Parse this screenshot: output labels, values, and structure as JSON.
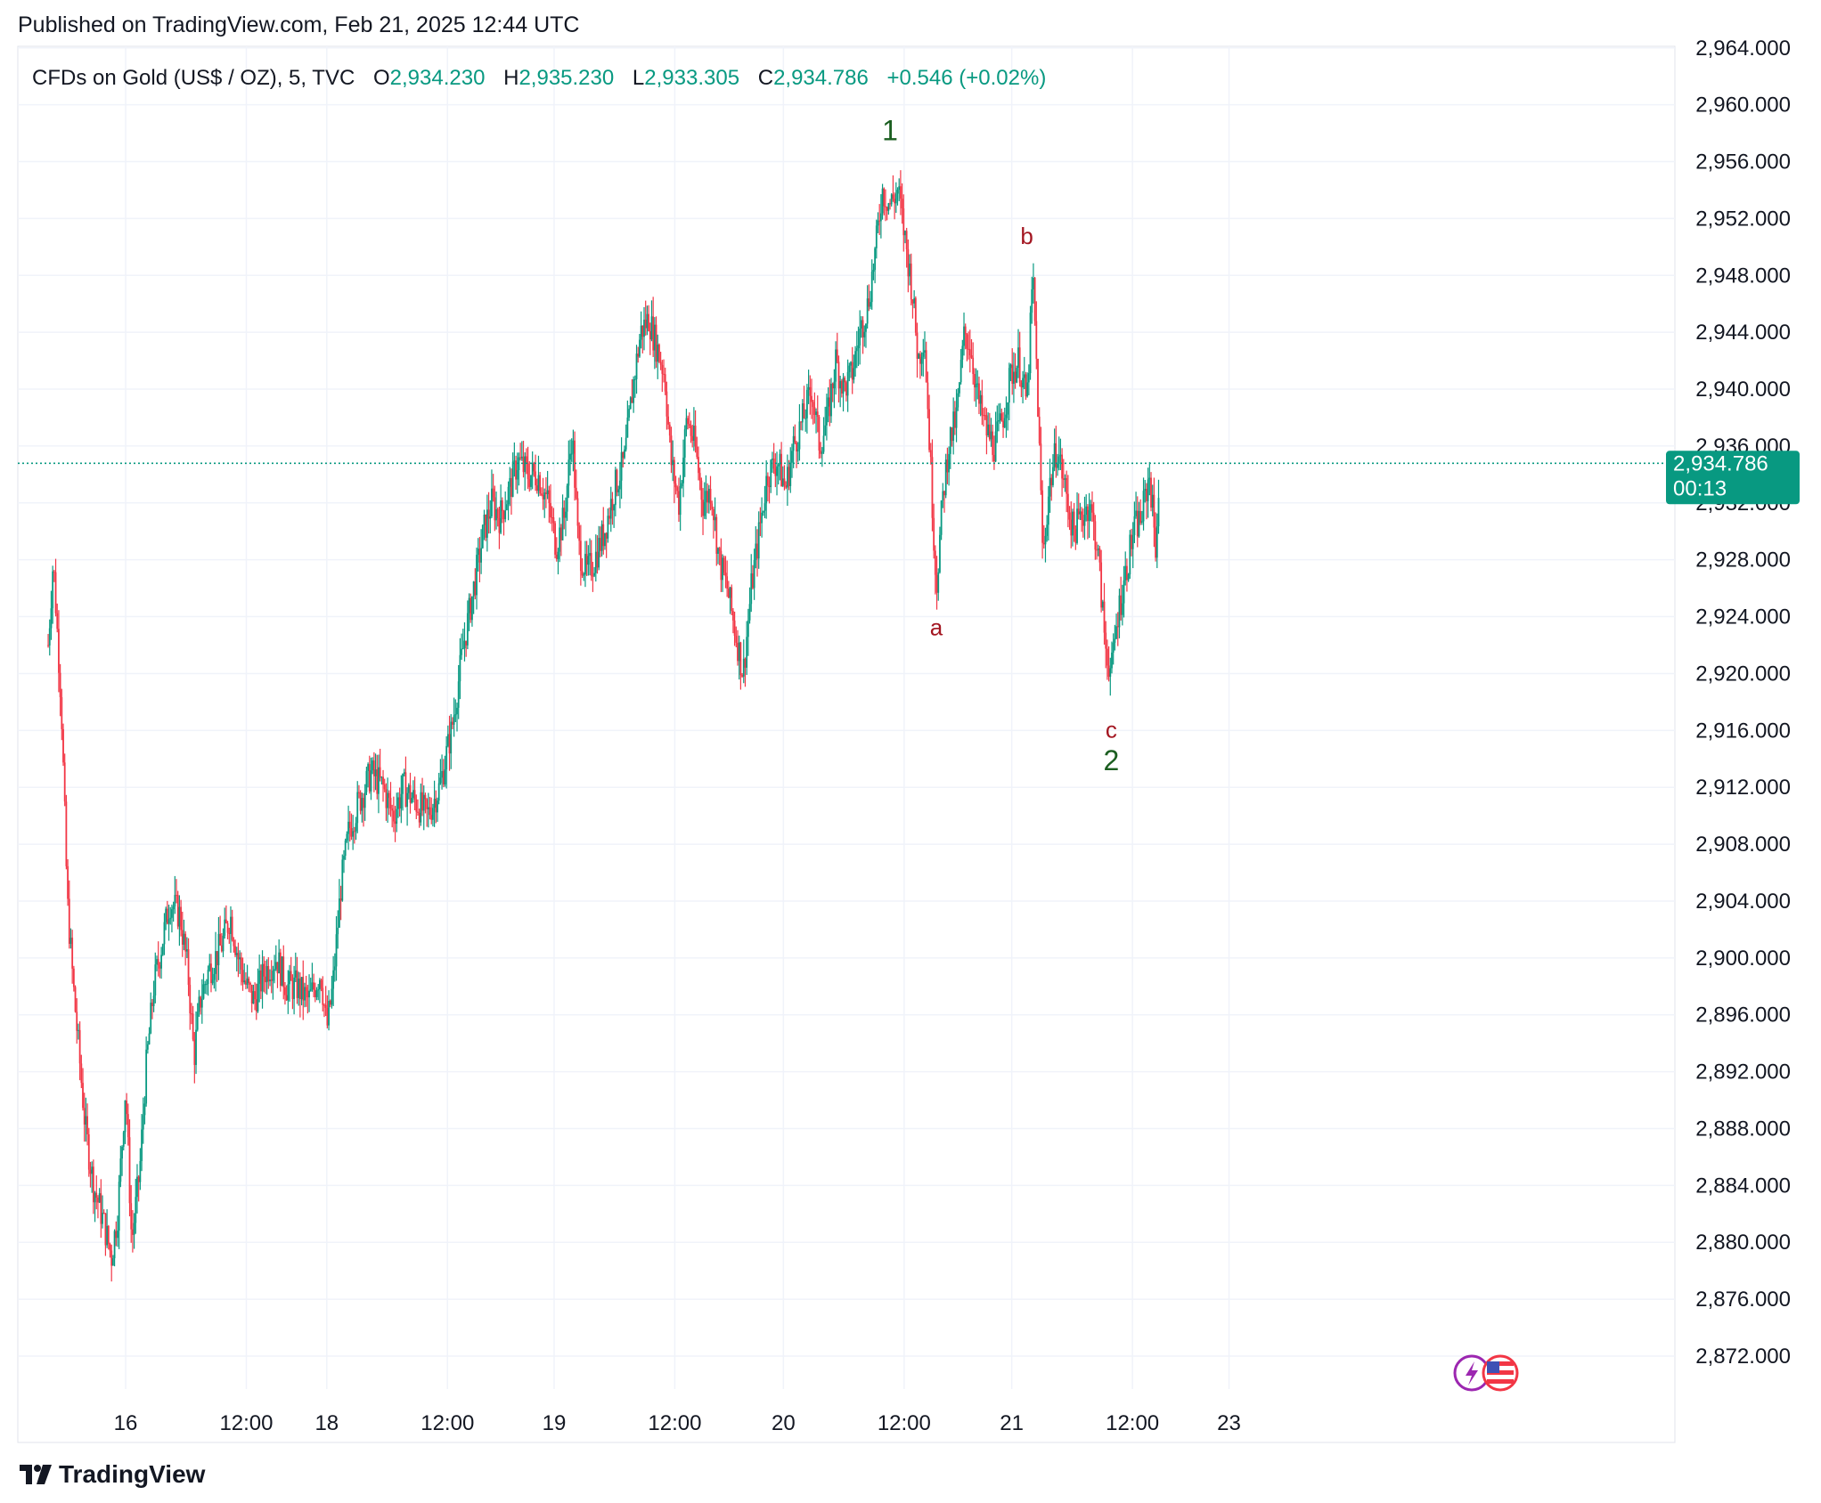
{
  "header": {
    "published": "Published on TradingView.com, Feb 21, 2025 12:44 UTC"
  },
  "legend": {
    "symbol": "CFDs on Gold (US$ / OZ), 5, TVC",
    "open_prefix": "O",
    "open": "2,934.230",
    "high_prefix": "H",
    "high": "2,935.230",
    "low_prefix": "L",
    "low": "2,933.305",
    "close_prefix": "C",
    "close": "2,934.786",
    "change": "+0.546 (+0.02%)"
  },
  "price_badge": {
    "price": "2,934.786",
    "countdown": "00:13"
  },
  "footer": {
    "brand": "TradingView"
  },
  "colors": {
    "up": "#089981",
    "down": "#f23645",
    "grid": "#f0f3fa",
    "badge": "#089981",
    "wave_green": "#1b5e20",
    "wave_red": "#a31621"
  },
  "chart_data": {
    "type": "candlestick",
    "symbol": "TVC:GOLD",
    "interval": "5",
    "ylim": [
      2870,
      2966
    ],
    "y_ticks": [
      "2,964.000",
      "2,960.000",
      "2,956.000",
      "2,952.000",
      "2,948.000",
      "2,944.000",
      "2,940.000",
      "2,936.000",
      "2,932.000",
      "2,928.000",
      "2,924.000",
      "2,920.000",
      "2,916.000",
      "2,912.000",
      "2,908.000",
      "2,904.000",
      "2,900.000",
      "2,896.000",
      "2,892.000",
      "2,888.000",
      "2,884.000",
      "2,880.000",
      "2,876.000",
      "2,872.000"
    ],
    "y_tick_values": [
      2964,
      2960,
      2956,
      2952,
      2948,
      2944,
      2940,
      2936,
      2932,
      2928,
      2924,
      2920,
      2916,
      2912,
      2908,
      2904,
      2900,
      2896,
      2892,
      2888,
      2884,
      2880,
      2876,
      2872
    ],
    "x_ticks": [
      {
        "label": "16",
        "t": 0.0
      },
      {
        "label": "12:00",
        "t": 12.0
      },
      {
        "label": "18",
        "t": 20.0
      },
      {
        "label": "12:00",
        "t": 32.0
      },
      {
        "label": "19",
        "t": 42.6
      },
      {
        "label": "12:00",
        "t": 54.6
      },
      {
        "label": "20",
        "t": 65.4
      },
      {
        "label": "12:00",
        "t": 77.4
      },
      {
        "label": "21",
        "t": 88.1
      },
      {
        "label": "12:00",
        "t": 100.1
      },
      {
        "label": "23",
        "t": 109.7
      }
    ],
    "x_unit": "hours since Feb 16 00:00 on the trading-time axis",
    "price_path": [
      [
        -7.7,
        2922
      ],
      [
        -7.2,
        2928
      ],
      [
        -6.4,
        2918
      ],
      [
        -5.8,
        2904
      ],
      [
        -5.2,
        2898
      ],
      [
        -4.6,
        2893
      ],
      [
        -4.0,
        2888
      ],
      [
        -3.2,
        2884
      ],
      [
        -2.4,
        2882
      ],
      [
        -1.4,
        2879
      ],
      [
        -0.8,
        2882
      ],
      [
        0.0,
        2891
      ],
      [
        0.6,
        2880
      ],
      [
        1.4,
        2885
      ],
      [
        2.0,
        2892
      ],
      [
        2.8,
        2898
      ],
      [
        3.6,
        2901
      ],
      [
        4.4,
        2904
      ],
      [
        5.4,
        2903
      ],
      [
        6.2,
        2899
      ],
      [
        6.8,
        2893
      ],
      [
        7.4,
        2897
      ],
      [
        8.2,
        2899
      ],
      [
        9.6,
        2901
      ],
      [
        10.4,
        2903
      ],
      [
        11.2,
        2900
      ],
      [
        12.0,
        2898
      ],
      [
        12.8,
        2897
      ],
      [
        13.8,
        2899
      ],
      [
        15.0,
        2900
      ],
      [
        16.0,
        2898
      ],
      [
        17.0,
        2898
      ],
      [
        18.2,
        2897
      ],
      [
        19.4,
        2899
      ],
      [
        20.0,
        2895
      ],
      [
        20.6,
        2898
      ],
      [
        21.4,
        2905
      ],
      [
        22.2,
        2909
      ],
      [
        23.2,
        2911
      ],
      [
        24.4,
        2913
      ],
      [
        25.6,
        2912
      ],
      [
        26.6,
        2910
      ],
      [
        27.6,
        2912
      ],
      [
        28.8,
        2911
      ],
      [
        30.0,
        2910
      ],
      [
        31.2,
        2912
      ],
      [
        32.4,
        2916
      ],
      [
        33.6,
        2922
      ],
      [
        34.6,
        2926
      ],
      [
        35.6,
        2930
      ],
      [
        36.4,
        2932
      ],
      [
        37.2,
        2931
      ],
      [
        38.2,
        2933
      ],
      [
        39.0,
        2935
      ],
      [
        40.0,
        2934
      ],
      [
        41.0,
        2934
      ],
      [
        42.0,
        2932
      ],
      [
        42.8,
        2929
      ],
      [
        43.6,
        2931
      ],
      [
        44.4,
        2937
      ],
      [
        45.0,
        2929
      ],
      [
        45.8,
        2927
      ],
      [
        46.6,
        2928
      ],
      [
        47.6,
        2930
      ],
      [
        48.6,
        2933
      ],
      [
        49.6,
        2935
      ],
      [
        50.4,
        2940
      ],
      [
        51.2,
        2944
      ],
      [
        52.0,
        2945
      ],
      [
        52.8,
        2943
      ],
      [
        53.6,
        2941
      ],
      [
        54.2,
        2935
      ],
      [
        55.0,
        2932
      ],
      [
        55.8,
        2938
      ],
      [
        56.6,
        2936
      ],
      [
        57.4,
        2932
      ],
      [
        58.2,
        2933
      ],
      [
        59.0,
        2928
      ],
      [
        59.8,
        2926
      ],
      [
        60.6,
        2923
      ],
      [
        61.4,
        2920
      ],
      [
        62.2,
        2926
      ],
      [
        63.0,
        2930
      ],
      [
        63.8,
        2934
      ],
      [
        64.8,
        2935
      ],
      [
        65.6,
        2933
      ],
      [
        66.4,
        2936
      ],
      [
        67.4,
        2938
      ],
      [
        68.2,
        2940
      ],
      [
        69.0,
        2936
      ],
      [
        69.8,
        2938
      ],
      [
        70.6,
        2942
      ],
      [
        71.4,
        2940
      ],
      [
        72.2,
        2941
      ],
      [
        73.0,
        2944
      ],
      [
        73.8,
        2946
      ],
      [
        74.6,
        2950
      ],
      [
        75.2,
        2954
      ],
      [
        76.0,
        2953
      ],
      [
        76.8,
        2954
      ],
      [
        77.6,
        2950
      ],
      [
        78.2,
        2947
      ],
      [
        78.8,
        2942
      ],
      [
        79.4,
        2944
      ],
      [
        80.0,
        2935
      ],
      [
        80.6,
        2926
      ],
      [
        81.2,
        2932
      ],
      [
        81.8,
        2936
      ],
      [
        82.6,
        2938
      ],
      [
        83.4,
        2944
      ],
      [
        84.0,
        2943
      ],
      [
        84.8,
        2939
      ],
      [
        85.6,
        2937
      ],
      [
        86.4,
        2936
      ],
      [
        87.2,
        2938
      ],
      [
        88.0,
        2941
      ],
      [
        88.8,
        2942
      ],
      [
        89.6,
        2939
      ],
      [
        90.2,
        2948
      ],
      [
        90.6,
        2941
      ],
      [
        91.2,
        2928
      ],
      [
        91.8,
        2933
      ],
      [
        92.6,
        2936
      ],
      [
        93.4,
        2933
      ],
      [
        94.2,
        2930
      ],
      [
        95.0,
        2931
      ],
      [
        95.8,
        2932
      ],
      [
        96.6,
        2929
      ],
      [
        97.4,
        2922
      ],
      [
        98.0,
        2920
      ],
      [
        98.6,
        2924
      ],
      [
        99.4,
        2927
      ],
      [
        100.2,
        2930
      ],
      [
        101.0,
        2931
      ],
      [
        101.8,
        2934
      ],
      [
        102.4,
        2929
      ],
      [
        102.8,
        2934
      ]
    ],
    "annotations": [
      {
        "label": "1",
        "t": 76.0,
        "price": 2957.5,
        "style": "green"
      },
      {
        "label": "a",
        "t": 80.6,
        "price": 2922.7,
        "style": "red"
      },
      {
        "label": "b",
        "t": 89.6,
        "price": 2950.2,
        "style": "red"
      },
      {
        "label": "c",
        "t": 98.0,
        "price": 2915.5,
        "style": "red"
      },
      {
        "label": "2",
        "t": 98.0,
        "price": 2913.2,
        "style": "green"
      }
    ],
    "last_price": 2934.786,
    "grid": true
  }
}
